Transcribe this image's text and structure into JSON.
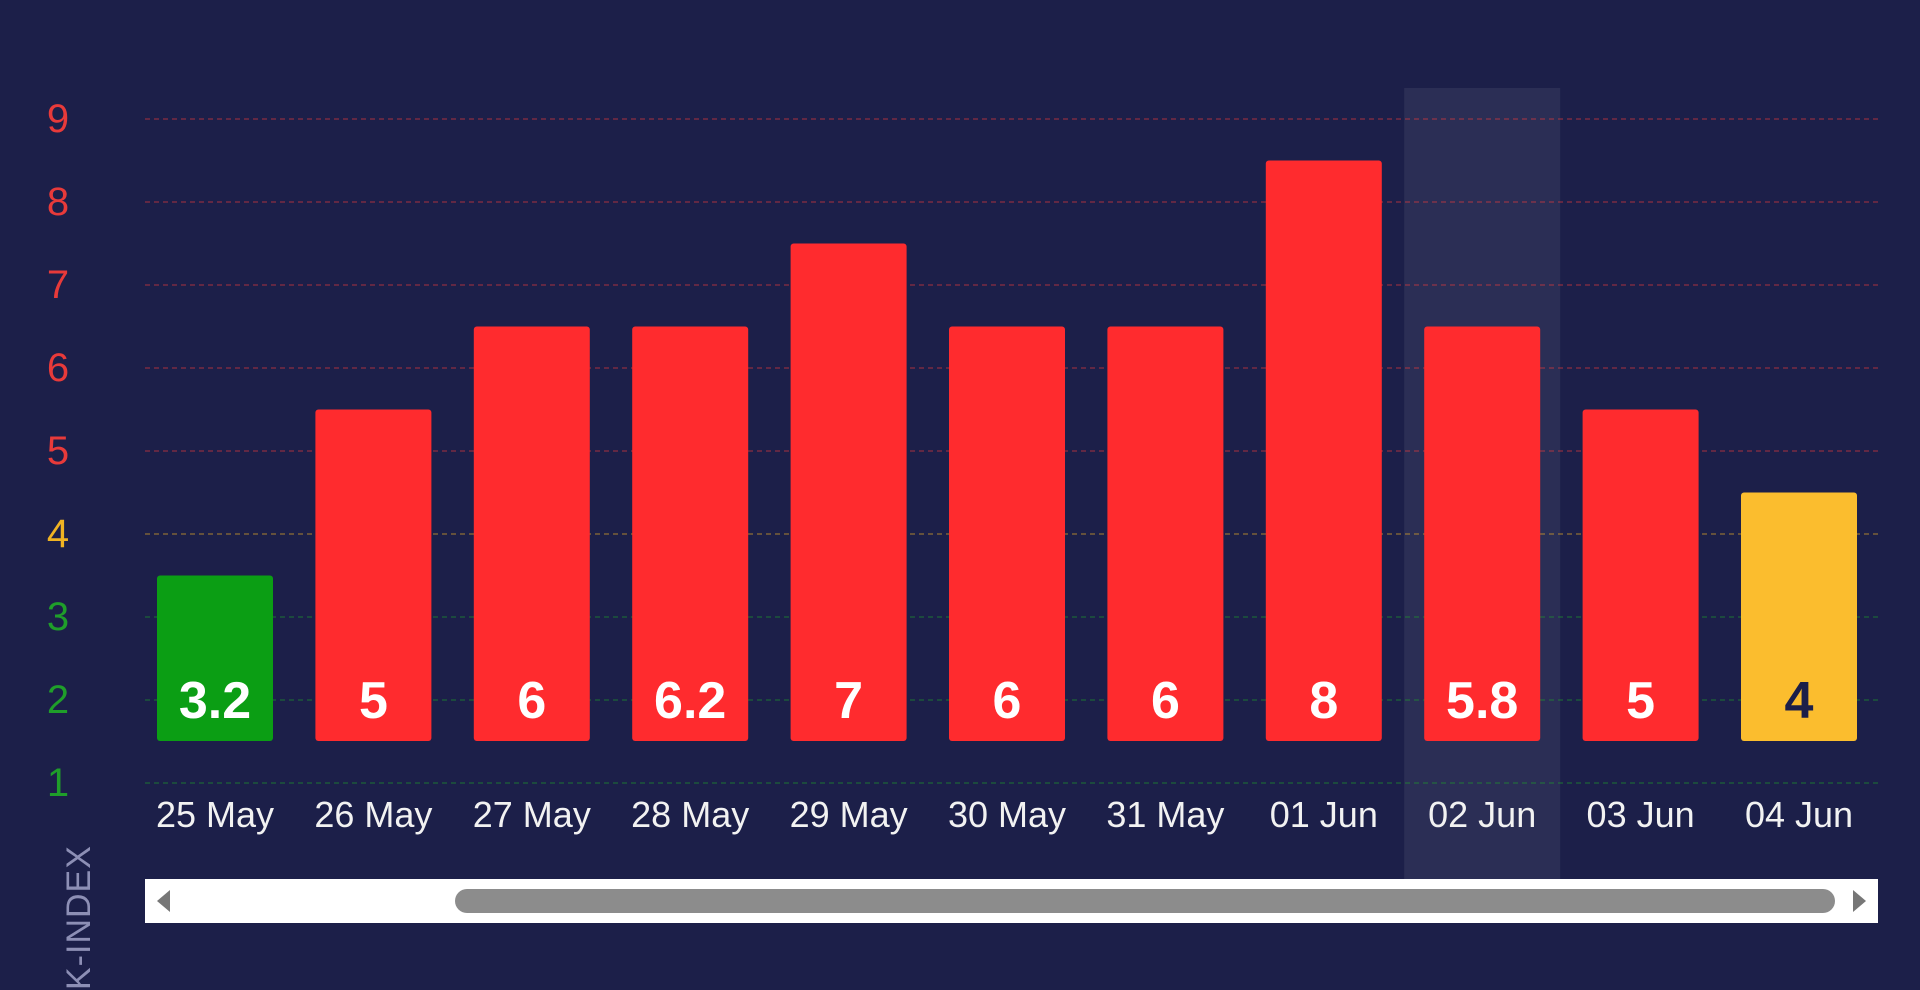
{
  "chart_data": {
    "type": "bar",
    "ylabel": "K-INDEX",
    "ylim": [
      1,
      9
    ],
    "y_ticks": [
      {
        "value": 1,
        "label": "1",
        "color": "#1f9e2a"
      },
      {
        "value": 2,
        "label": "2",
        "color": "#1f9e2a"
      },
      {
        "value": 3,
        "label": "3",
        "color": "#1f9e2a"
      },
      {
        "value": 4,
        "label": "4",
        "color": "#f0b323"
      },
      {
        "value": 5,
        "label": "5",
        "color": "#e83a3a"
      },
      {
        "value": 6,
        "label": "6",
        "color": "#e83a3a"
      },
      {
        "value": 7,
        "label": "7",
        "color": "#e83a3a"
      },
      {
        "value": 8,
        "label": "8",
        "color": "#e83a3a"
      },
      {
        "value": 9,
        "label": "9",
        "color": "#e83a3a"
      }
    ],
    "categories": [
      "25 May",
      "26 May",
      "27 May",
      "28 May",
      "29 May",
      "30 May",
      "31 May",
      "01 Jun",
      "02 Jun",
      "03 Jun",
      "04 Jun"
    ],
    "values": [
      3.2,
      5,
      6,
      6.2,
      7,
      6,
      6,
      8,
      5.8,
      5,
      4
    ],
    "data_labels": [
      "3.2",
      "5",
      "6",
      "6.2",
      "7",
      "6",
      "6",
      "8",
      "5.8",
      "5",
      "4"
    ],
    "bar_top_levels": [
      3.5,
      5.5,
      6.5,
      6.5,
      7.5,
      6.5,
      6.5,
      8.5,
      6.5,
      5.5,
      4.5
    ],
    "bar_colors": [
      "#0b9e14",
      "#ff2b2e",
      "#ff2b2e",
      "#ff2b2e",
      "#ff2b2e",
      "#ff2b2e",
      "#ff2b2e",
      "#ff2b2e",
      "#ff2b2e",
      "#ff2b2e",
      "#fbbd2e"
    ],
    "label_colors": [
      "#ffffff",
      "#ffffff",
      "#ffffff",
      "#ffffff",
      "#ffffff",
      "#ffffff",
      "#ffffff",
      "#ffffff",
      "#ffffff",
      "#ffffff",
      "#1c1f49"
    ],
    "highlighted_category": "02 Jun",
    "grid": true,
    "colors": {
      "background": "#1c1f49",
      "green": "#0b9e14",
      "red": "#ff2b2e",
      "yellow": "#fbbd2e",
      "axis_text": "#f2f2f2",
      "highlight": "#2e3157"
    }
  },
  "scrollbar": {
    "left_arrow_icon": "triangle-left-icon",
    "right_arrow_icon": "triangle-right-icon"
  }
}
